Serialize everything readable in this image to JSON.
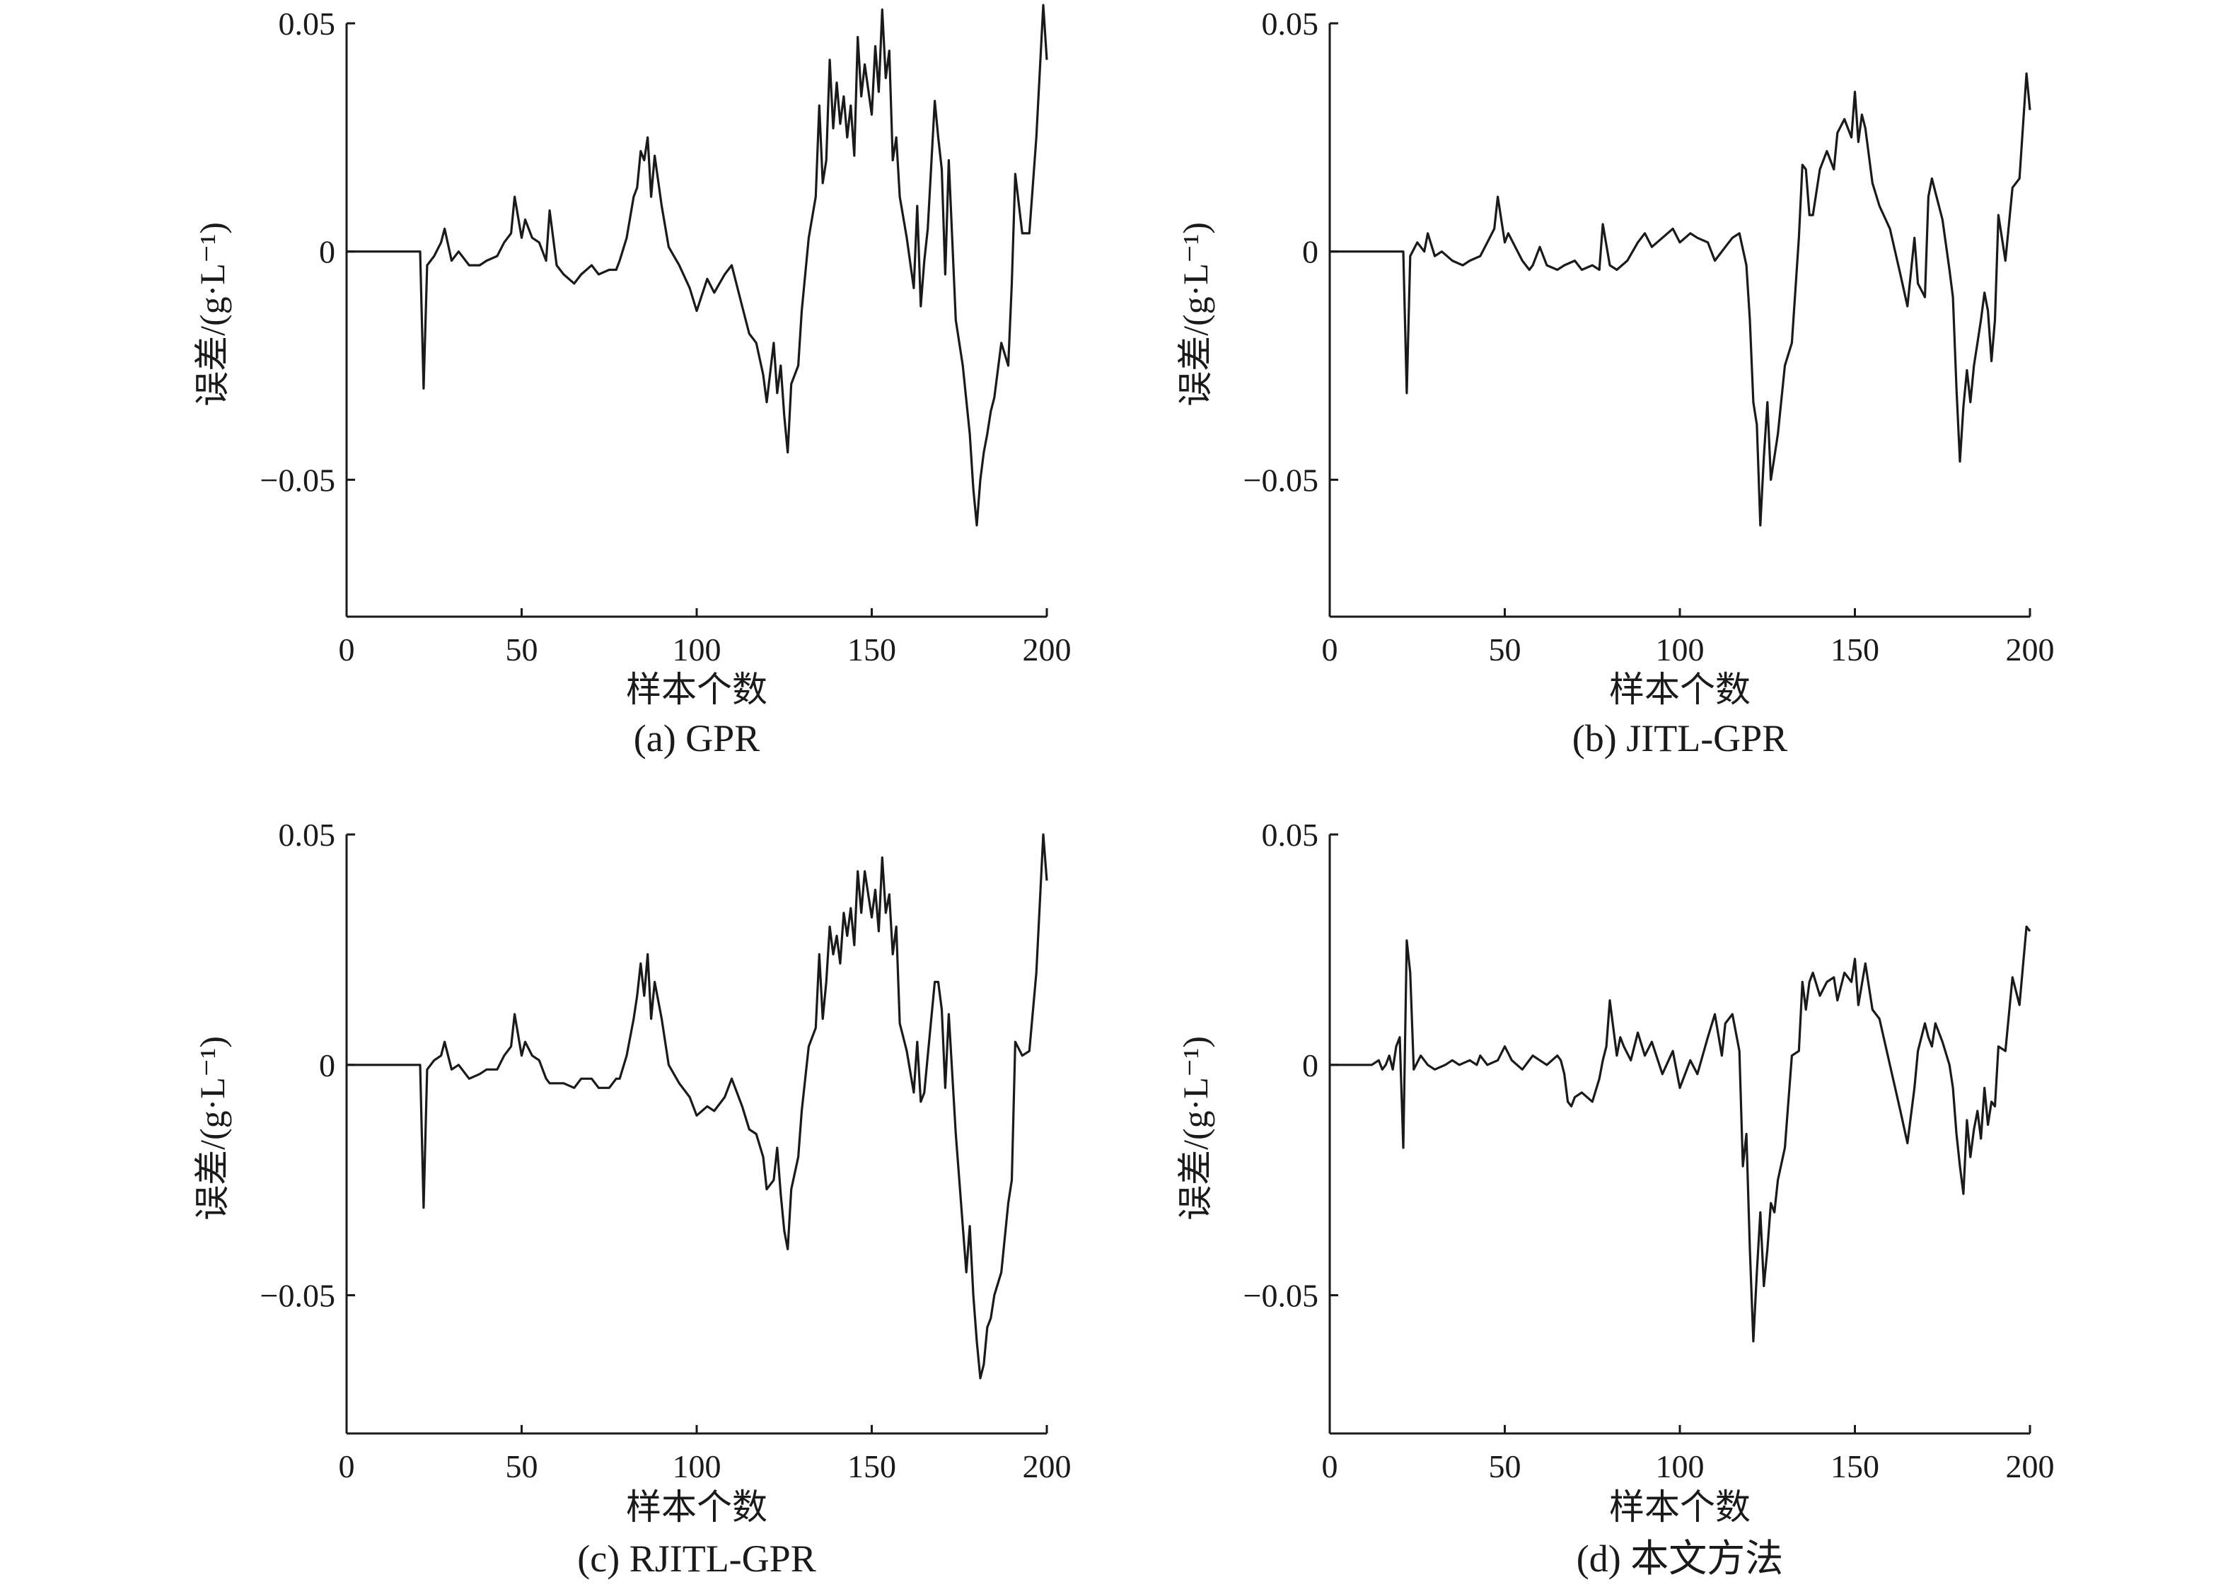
{
  "chart_data": [
    {
      "type": "line",
      "caption": "(a) GPR",
      "xlabel": "样本个数",
      "ylabel": "误差/(g·L⁻¹)",
      "xlim": [
        0,
        200
      ],
      "ylim": [
        -0.08,
        0.05
      ],
      "xticks": [
        0,
        50,
        100,
        150,
        200
      ],
      "yticks": [
        {
          "value": 0.05,
          "label": "0.05"
        },
        {
          "value": 0,
          "label": "0"
        },
        {
          "value": -0.05,
          "label": "−0.05"
        }
      ],
      "x": [
        0,
        20,
        21,
        22,
        23,
        25,
        27,
        28,
        30,
        32,
        35,
        38,
        40,
        43,
        45,
        47,
        48,
        50,
        51,
        53,
        55,
        57,
        58,
        60,
        62,
        65,
        67,
        70,
        72,
        75,
        77,
        78,
        80,
        82,
        83,
        84,
        85,
        86,
        87,
        88,
        90,
        92,
        95,
        98,
        100,
        103,
        105,
        108,
        110,
        113,
        115,
        117,
        119,
        120,
        122,
        123,
        124,
        125,
        126,
        127,
        129,
        130,
        132,
        134,
        135,
        136,
        137,
        138,
        139,
        140,
        141,
        142,
        143,
        144,
        145,
        146,
        147,
        148,
        150,
        151,
        152,
        153,
        154,
        155,
        156,
        157,
        158,
        160,
        162,
        163,
        164,
        165,
        166,
        168,
        169,
        170,
        171,
        172,
        174,
        176,
        178,
        179,
        180,
        181,
        182,
        183,
        184,
        185,
        187,
        189,
        190,
        191,
        193,
        195,
        197,
        199,
        200
      ],
      "values": [
        0,
        0,
        0,
        -0.03,
        -0.003,
        -0.001,
        0.002,
        0.005,
        -0.002,
        0,
        -0.003,
        -0.003,
        -0.002,
        -0.001,
        0.002,
        0.004,
        0.012,
        0.003,
        0.007,
        0.003,
        0.002,
        -0.002,
        0.009,
        -0.003,
        -0.005,
        -0.007,
        -0.005,
        -0.003,
        -0.005,
        -0.004,
        -0.004,
        -0.002,
        0.003,
        0.012,
        0.014,
        0.022,
        0.02,
        0.025,
        0.012,
        0.021,
        0.01,
        0.001,
        -0.003,
        -0.008,
        -0.013,
        -0.006,
        -0.009,
        -0.005,
        -0.003,
        -0.012,
        -0.018,
        -0.02,
        -0.027,
        -0.033,
        -0.02,
        -0.031,
        -0.025,
        -0.036,
        -0.044,
        -0.029,
        -0.025,
        -0.013,
        0.003,
        0.012,
        0.032,
        0.015,
        0.02,
        0.042,
        0.027,
        0.037,
        0.028,
        0.034,
        0.025,
        0.032,
        0.021,
        0.047,
        0.034,
        0.041,
        0.03,
        0.045,
        0.035,
        0.053,
        0.038,
        0.044,
        0.02,
        0.025,
        0.012,
        0.003,
        -0.008,
        0.01,
        -0.012,
        -0.002,
        0.005,
        0.033,
        0.025,
        0.018,
        -0.005,
        0.02,
        -0.015,
        -0.025,
        -0.04,
        -0.052,
        -0.06,
        -0.05,
        -0.044,
        -0.04,
        -0.035,
        -0.032,
        -0.02,
        -0.025,
        -0.007,
        0.017,
        0.004,
        0.004,
        0.025,
        0.054,
        0.042
      ]
    },
    {
      "type": "line",
      "caption": "(b) JITL-GPR",
      "xlabel": "样本个数",
      "ylabel": "误差/(g·L⁻¹)",
      "xlim": [
        0,
        200
      ],
      "ylim": [
        -0.08,
        0.05
      ],
      "xticks": [
        0,
        50,
        100,
        150,
        200
      ],
      "yticks": [
        {
          "value": 0.05,
          "label": "0.05"
        },
        {
          "value": 0,
          "label": "0"
        },
        {
          "value": -0.05,
          "label": "−0.05"
        }
      ],
      "x": [
        0,
        20,
        21,
        22,
        23,
        25,
        27,
        28,
        30,
        32,
        35,
        38,
        40,
        43,
        45,
        47,
        48,
        50,
        51,
        53,
        55,
        57,
        58,
        60,
        62,
        65,
        67,
        70,
        72,
        75,
        77,
        78,
        80,
        82,
        85,
        88,
        90,
        92,
        95,
        98,
        100,
        103,
        105,
        108,
        110,
        113,
        115,
        117,
        119,
        120,
        121,
        122,
        123,
        124,
        125,
        126,
        127,
        128,
        130,
        132,
        134,
        135,
        136,
        137,
        138,
        140,
        142,
        144,
        145,
        147,
        149,
        150,
        151,
        152,
        153,
        155,
        157,
        160,
        163,
        165,
        167,
        168,
        170,
        171,
        172,
        173,
        175,
        177,
        178,
        179,
        180,
        181,
        182,
        183,
        184,
        185,
        186,
        187,
        188,
        189,
        190,
        191,
        193,
        195,
        197,
        199,
        200
      ],
      "values": [
        0,
        0,
        0,
        -0.031,
        -0.001,
        0.002,
        0,
        0.004,
        -0.001,
        0,
        -0.002,
        -0.003,
        -0.002,
        -0.001,
        0.002,
        0.005,
        0.012,
        0.002,
        0.004,
        0.001,
        -0.002,
        -0.004,
        -0.003,
        0.001,
        -0.003,
        -0.004,
        -0.003,
        -0.002,
        -0.004,
        -0.003,
        -0.004,
        0.006,
        -0.003,
        -0.004,
        -0.002,
        0.002,
        0.004,
        0.001,
        0.003,
        0.005,
        0.002,
        0.004,
        0.003,
        0.002,
        -0.002,
        0.001,
        0.003,
        0.004,
        -0.003,
        -0.015,
        -0.033,
        -0.038,
        -0.06,
        -0.045,
        -0.033,
        -0.05,
        -0.045,
        -0.04,
        -0.025,
        -0.02,
        0.003,
        0.019,
        0.018,
        0.008,
        0.008,
        0.018,
        0.022,
        0.018,
        0.026,
        0.029,
        0.025,
        0.035,
        0.024,
        0.03,
        0.027,
        0.015,
        0.01,
        0.005,
        -0.005,
        -0.012,
        0.003,
        -0.007,
        -0.01,
        0.012,
        0.016,
        0.013,
        0.007,
        -0.004,
        -0.01,
        -0.03,
        -0.046,
        -0.034,
        -0.026,
        -0.033,
        -0.025,
        -0.02,
        -0.015,
        -0.009,
        -0.013,
        -0.024,
        -0.015,
        0.008,
        -0.002,
        0.014,
        0.016,
        0.039,
        0.031
      ]
    },
    {
      "type": "line",
      "caption": "(c) RJITL-GPR",
      "xlabel": "样本个数",
      "ylabel": "误差/(g·L⁻¹)",
      "xlim": [
        0,
        200
      ],
      "ylim": [
        -0.08,
        0.05
      ],
      "xticks": [
        0,
        50,
        100,
        150,
        200
      ],
      "yticks": [
        {
          "value": 0.05,
          "label": "0.05"
        },
        {
          "value": 0,
          "label": "0"
        },
        {
          "value": -0.05,
          "label": "−0.05"
        }
      ],
      "x": [
        0,
        20,
        21,
        22,
        23,
        25,
        27,
        28,
        30,
        32,
        35,
        38,
        40,
        43,
        45,
        47,
        48,
        50,
        51,
        53,
        55,
        57,
        58,
        60,
        62,
        65,
        67,
        70,
        72,
        75,
        77,
        78,
        80,
        82,
        83,
        84,
        85,
        86,
        87,
        88,
        90,
        92,
        95,
        98,
        100,
        103,
        105,
        108,
        110,
        113,
        115,
        117,
        119,
        120,
        122,
        123,
        124,
        125,
        126,
        127,
        129,
        130,
        132,
        134,
        135,
        136,
        137,
        138,
        139,
        140,
        141,
        142,
        143,
        144,
        145,
        146,
        147,
        148,
        150,
        151,
        152,
        153,
        154,
        155,
        156,
        157,
        158,
        160,
        162,
        163,
        164,
        165,
        166,
        168,
        169,
        170,
        171,
        172,
        174,
        175,
        176,
        177,
        178,
        179,
        180,
        181,
        182,
        183,
        184,
        185,
        187,
        189,
        190,
        191,
        193,
        195,
        197,
        199,
        200
      ],
      "values": [
        0,
        0,
        0,
        -0.031,
        -0.001,
        0.001,
        0.002,
        0.005,
        -0.001,
        0,
        -0.003,
        -0.002,
        -0.001,
        -0.001,
        0.002,
        0.004,
        0.011,
        0.002,
        0.005,
        0.002,
        0.001,
        -0.003,
        -0.004,
        -0.004,
        -0.004,
        -0.005,
        -0.003,
        -0.003,
        -0.005,
        -0.005,
        -0.003,
        -0.003,
        0.002,
        0.01,
        0.015,
        0.022,
        0.015,
        0.024,
        0.01,
        0.018,
        0.01,
        0,
        -0.004,
        -0.007,
        -0.011,
        -0.009,
        -0.01,
        -0.007,
        -0.003,
        -0.009,
        -0.014,
        -0.015,
        -0.02,
        -0.027,
        -0.025,
        -0.018,
        -0.028,
        -0.036,
        -0.04,
        -0.027,
        -0.02,
        -0.01,
        0.004,
        0.008,
        0.024,
        0.01,
        0.018,
        0.03,
        0.024,
        0.028,
        0.022,
        0.033,
        0.028,
        0.034,
        0.026,
        0.042,
        0.033,
        0.042,
        0.032,
        0.038,
        0.029,
        0.045,
        0.033,
        0.037,
        0.024,
        0.03,
        0.009,
        0.003,
        -0.006,
        0.005,
        -0.008,
        -0.006,
        0.002,
        0.018,
        0.018,
        0.012,
        -0.005,
        0.011,
        -0.015,
        -0.025,
        -0.035,
        -0.045,
        -0.035,
        -0.05,
        -0.06,
        -0.068,
        -0.065,
        -0.057,
        -0.055,
        -0.05,
        -0.045,
        -0.03,
        -0.025,
        0.005,
        0.002,
        0.003,
        0.02,
        0.05,
        0.04
      ]
    },
    {
      "type": "line",
      "caption": "(d) 本文方法",
      "xlabel": "样本个数",
      "ylabel": "误差/(g·L⁻¹)",
      "xlim": [
        0,
        200
      ],
      "ylim": [
        -0.08,
        0.05
      ],
      "xticks": [
        0,
        50,
        100,
        150,
        200
      ],
      "yticks": [
        {
          "value": 0.05,
          "label": "0.05"
        },
        {
          "value": 0,
          "label": "0"
        },
        {
          "value": -0.05,
          "label": "−0.05"
        }
      ],
      "x": [
        0,
        12,
        14,
        15,
        16,
        17,
        18,
        19,
        20,
        21,
        22,
        23,
        24,
        26,
        28,
        30,
        33,
        35,
        37,
        40,
        42,
        43,
        45,
        48,
        50,
        52,
        55,
        58,
        60,
        62,
        65,
        66,
        67,
        68,
        69,
        70,
        72,
        75,
        77,
        78,
        79,
        80,
        82,
        83,
        84,
        86,
        88,
        90,
        92,
        95,
        98,
        100,
        103,
        105,
        108,
        110,
        112,
        113,
        115,
        117,
        118,
        119,
        120,
        121,
        122,
        123,
        124,
        125,
        126,
        127,
        128,
        130,
        132,
        134,
        135,
        136,
        137,
        138,
        140,
        142,
        144,
        145,
        147,
        149,
        150,
        151,
        153,
        155,
        157,
        160,
        163,
        165,
        167,
        168,
        170,
        171,
        172,
        173,
        175,
        177,
        178,
        179,
        180,
        181,
        182,
        183,
        184,
        185,
        186,
        187,
        188,
        189,
        190,
        191,
        193,
        195,
        197,
        199,
        200
      ],
      "values": [
        0,
        0,
        0.001,
        -0.001,
        0,
        0.002,
        -0.001,
        0.004,
        0.006,
        -0.018,
        0.027,
        0.02,
        -0.001,
        0.002,
        0,
        -0.001,
        0,
        0.001,
        0,
        0.001,
        0,
        0.002,
        0,
        0.001,
        0.004,
        0.001,
        -0.001,
        0.002,
        0.001,
        0,
        0.002,
        0.001,
        -0.002,
        -0.008,
        -0.009,
        -0.007,
        -0.006,
        -0.008,
        -0.003,
        0.001,
        0.004,
        0.014,
        0.002,
        0.006,
        0.004,
        0.001,
        0.007,
        0.002,
        0.005,
        -0.002,
        0.003,
        -0.005,
        0.001,
        -0.002,
        0.006,
        0.011,
        0.002,
        0.009,
        0.011,
        0.003,
        -0.022,
        -0.015,
        -0.04,
        -0.06,
        -0.045,
        -0.032,
        -0.048,
        -0.04,
        -0.03,
        -0.032,
        -0.025,
        -0.018,
        0.002,
        0.003,
        0.018,
        0.012,
        0.018,
        0.02,
        0.015,
        0.018,
        0.019,
        0.014,
        0.02,
        0.018,
        0.023,
        0.013,
        0.022,
        0.012,
        0.01,
        0,
        -0.01,
        -0.017,
        -0.005,
        0.003,
        0.009,
        0.006,
        0.004,
        0.009,
        0.005,
        0,
        -0.005,
        -0.015,
        -0.022,
        -0.028,
        -0.012,
        -0.02,
        -0.014,
        -0.01,
        -0.016,
        -0.005,
        -0.013,
        -0.008,
        -0.009,
        0.004,
        0.003,
        0.019,
        0.013,
        0.03,
        0.029
      ]
    }
  ]
}
